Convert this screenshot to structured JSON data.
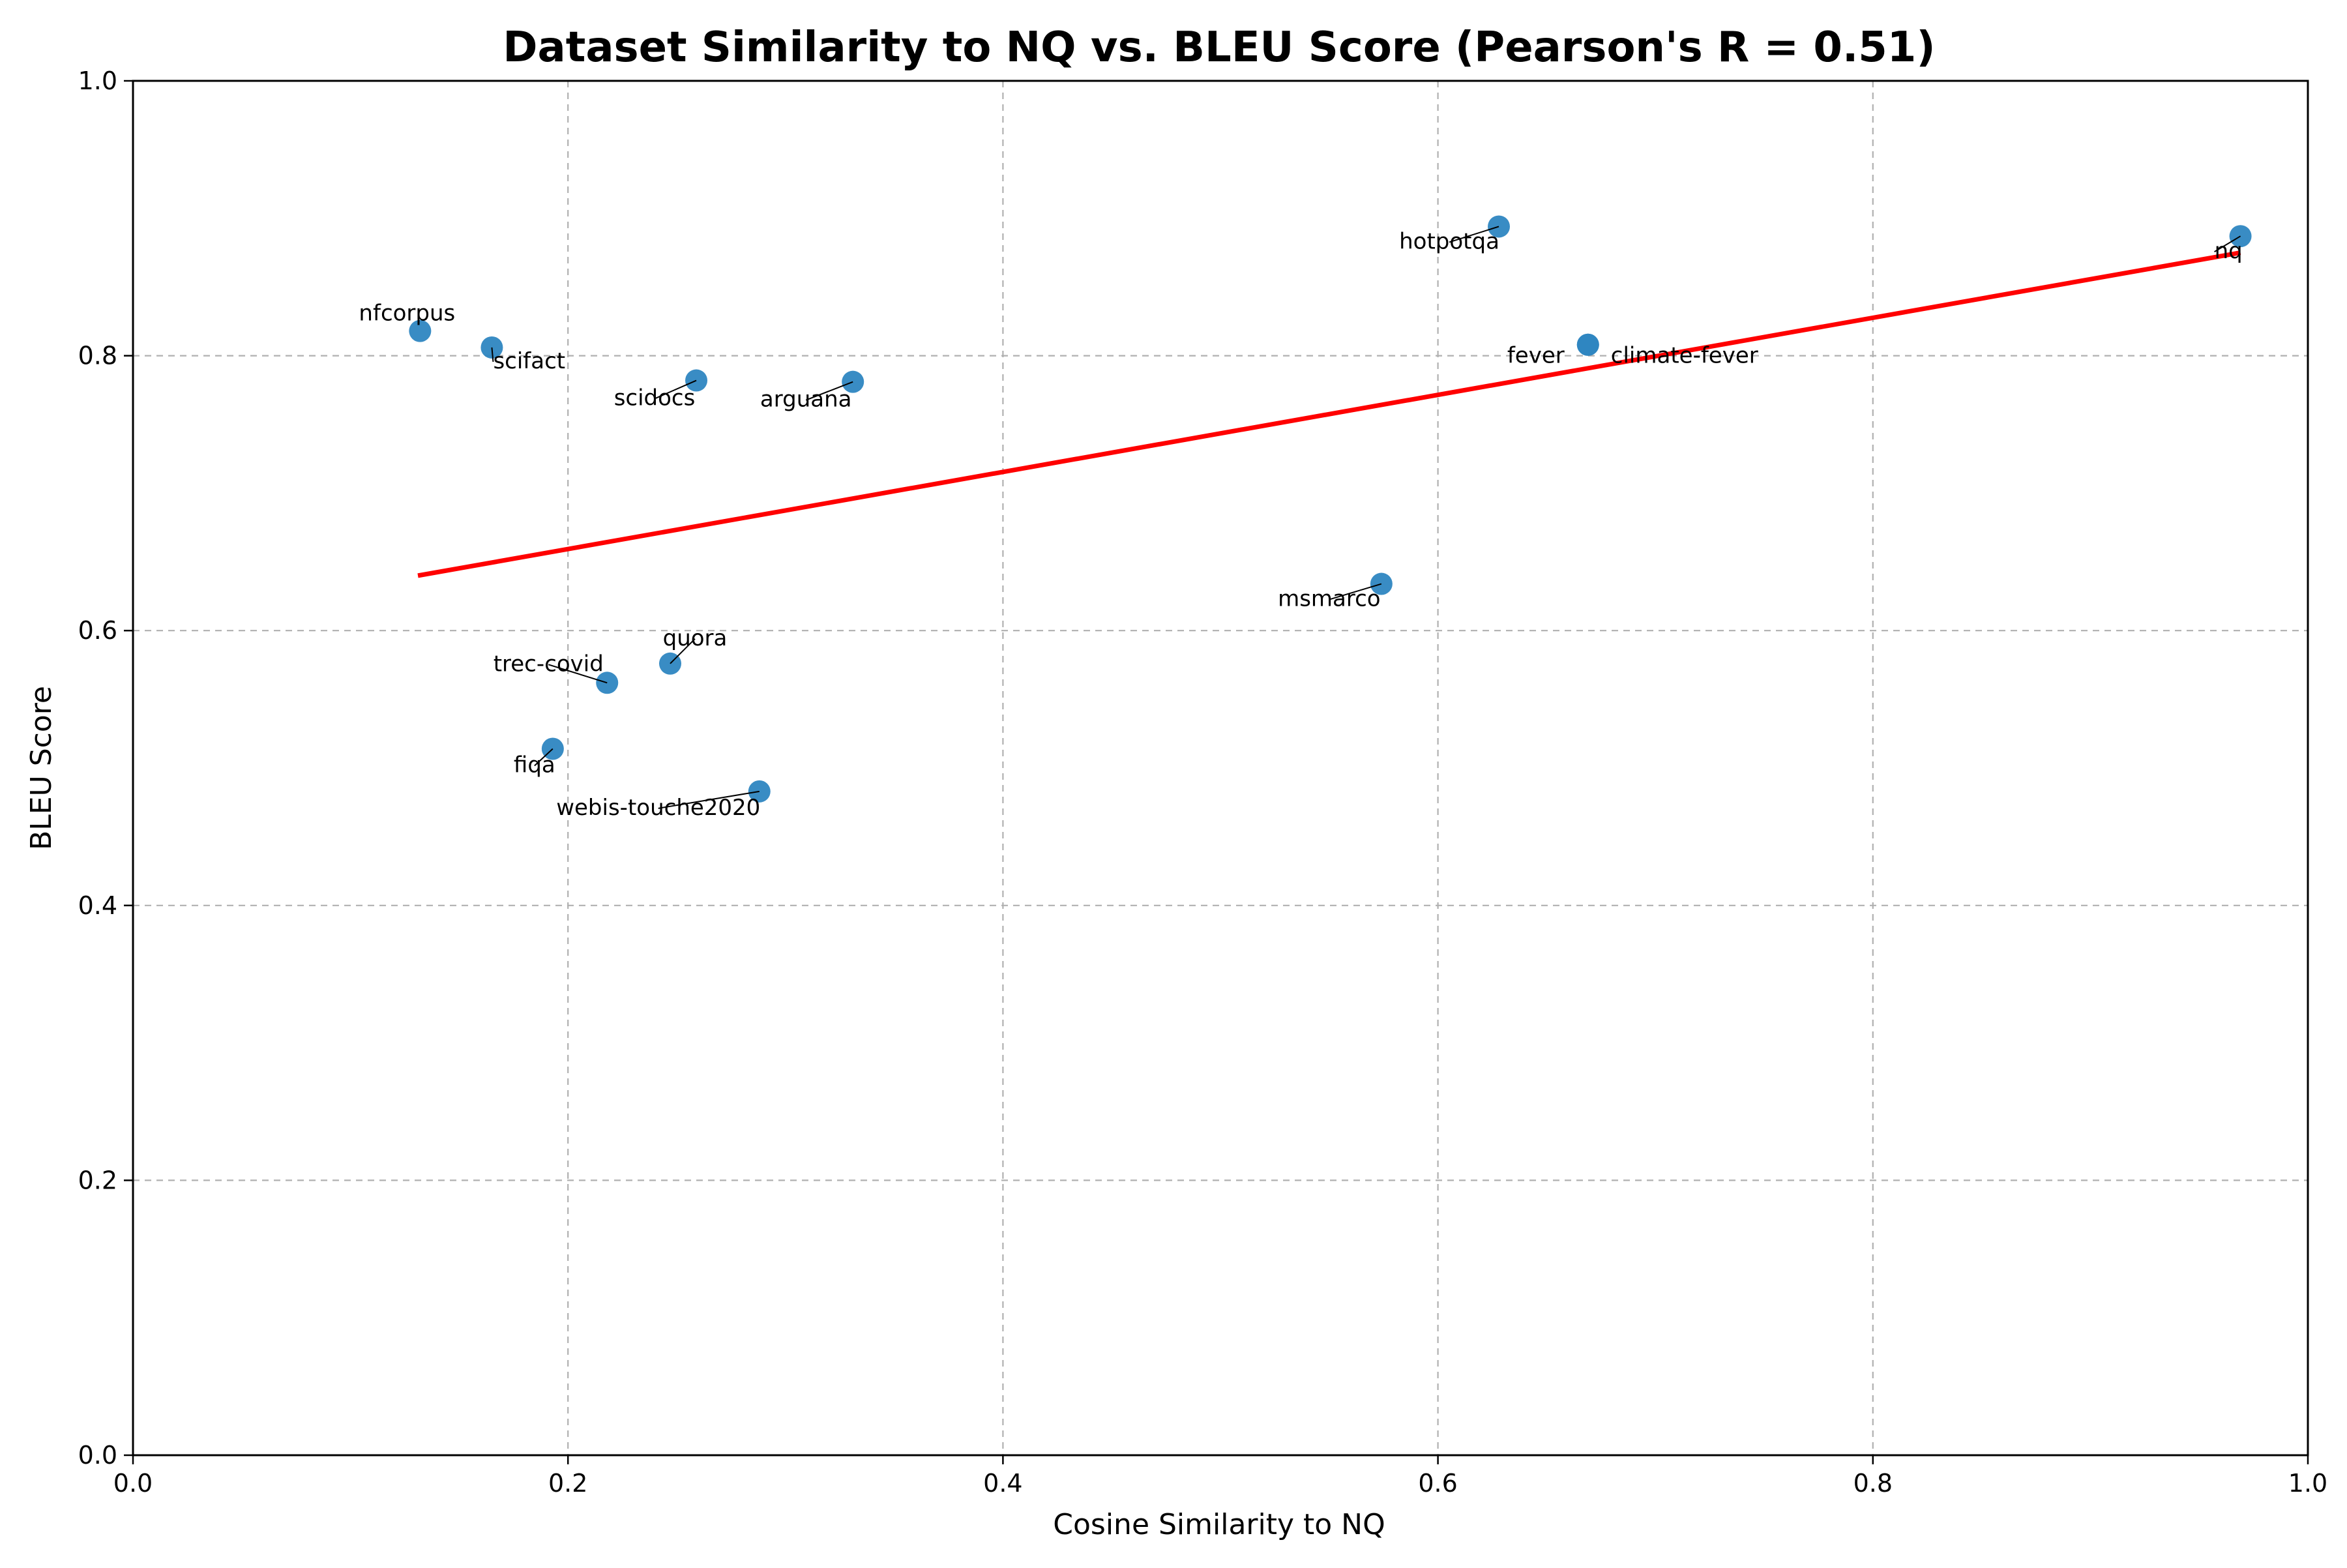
{
  "chart_data": {
    "type": "scatter",
    "title": "Dataset Similarity to NQ vs. BLEU Score (Pearson's R = 0.51)",
    "xlabel": "Cosine Similarity to NQ",
    "ylabel": "BLEU Score",
    "xlim": [
      0.0,
      1.0
    ],
    "ylim": [
      0.0,
      1.0
    ],
    "xticks": [
      "0.0",
      "0.2",
      "0.4",
      "0.6",
      "0.8",
      "1.0"
    ],
    "yticks": [
      "0.0",
      "0.2",
      "0.4",
      "0.6",
      "0.8",
      "1.0"
    ],
    "grid": true,
    "colors": {
      "points": "#2e86c1",
      "trend": "#ff0000",
      "grid": "#b0b0b0"
    },
    "points": [
      {
        "label": "nfcorpus",
        "x": 0.132,
        "y": 0.818
      },
      {
        "label": "scifact",
        "x": 0.165,
        "y": 0.806
      },
      {
        "label": "scidocs",
        "x": 0.259,
        "y": 0.782
      },
      {
        "label": "arguana",
        "x": 0.331,
        "y": 0.781
      },
      {
        "label": "hotpotqa",
        "x": 0.628,
        "y": 0.894
      },
      {
        "label": "fever",
        "x": 0.669,
        "y": 0.808
      },
      {
        "label": "climate-fever",
        "x": 0.669,
        "y": 0.808
      },
      {
        "label": "nq",
        "x": 0.969,
        "y": 0.887
      },
      {
        "label": "msmarco",
        "x": 0.574,
        "y": 0.634
      },
      {
        "label": "trec-covid",
        "x": 0.218,
        "y": 0.562
      },
      {
        "label": "quora",
        "x": 0.247,
        "y": 0.576
      },
      {
        "label": "fiqa",
        "x": 0.193,
        "y": 0.514
      },
      {
        "label": "webis-touche2020",
        "x": 0.288,
        "y": 0.483
      }
    ],
    "trendline": {
      "x": [
        0.131,
        0.969
      ],
      "y": [
        0.64,
        0.875
      ]
    }
  }
}
